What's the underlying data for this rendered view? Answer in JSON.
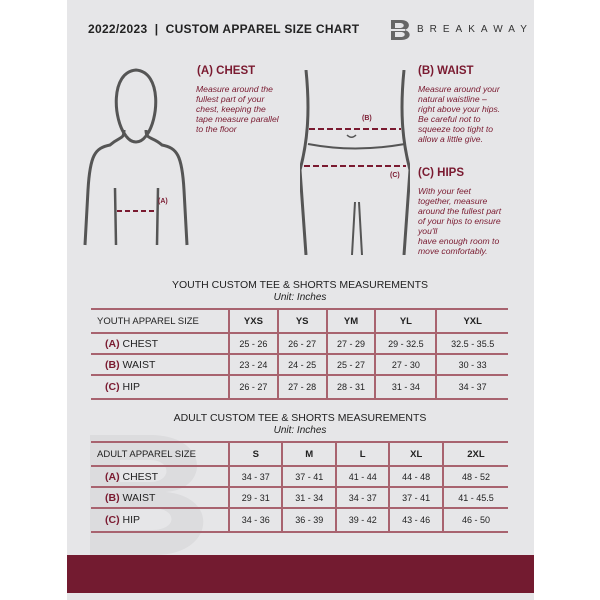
{
  "header": {
    "title": "2022/2023  |  CUSTOM APPAREL SIZE CHART",
    "brand": "BREAKAWAY"
  },
  "guides": {
    "chest": {
      "heading": "(A) CHEST",
      "text": "Measure around the\nfullest part of your\nchest, keeping the\ntape measure parallel\nto the floor",
      "marker": "(A)"
    },
    "waist": {
      "heading": "(B) WAIST",
      "text": "Measure around your\nnatural waistline –\nright above your hips.\nBe careful not to\nsqueeze too tight to\nallow a little give.",
      "marker": "(B)"
    },
    "hips": {
      "heading": "(C) HIPS",
      "text": "With your feet\ntogether, measure\naround the fullest part\nof your hips to ensure\nyou'll\nhave enough room to\nmove comfortably.",
      "marker": "(C)"
    }
  },
  "youth": {
    "title": "YOUTH CUSTOM TEE & SHORTS MEASUREMENTS",
    "unit": "Unit: Inches",
    "header": "YOUTH APPAREL SIZE",
    "sizes": [
      "YXS",
      "YS",
      "YM",
      "YL",
      "YXL"
    ],
    "rows": [
      {
        "letter": "(A)",
        "label": "CHEST",
        "values": [
          "25 - 26",
          "26 - 27",
          "27 - 29",
          "29 - 32.5",
          "32.5 - 35.5"
        ]
      },
      {
        "letter": "(B)",
        "label": "WAIST",
        "values": [
          "23 - 24",
          "24 - 25",
          "25 - 27",
          "27 - 30",
          "30 - 33"
        ]
      },
      {
        "letter": "(C)",
        "label": "HIP",
        "values": [
          "26 - 27",
          "27 - 28",
          "28 - 31",
          "31 - 34",
          "34 - 37"
        ]
      }
    ]
  },
  "adult": {
    "title": "ADULT CUSTOM TEE & SHORTS MEASUREMENTS",
    "unit": "Unit: Inches",
    "header": "ADULT APPAREL SIZE",
    "sizes": [
      "S",
      "M",
      "L",
      "XL",
      "2XL"
    ],
    "rows": [
      {
        "letter": "(A)",
        "label": "CHEST",
        "values": [
          "34 - 37",
          "37 - 41",
          "41 - 44",
          "44 - 48",
          "48 - 52"
        ]
      },
      {
        "letter": "(B)",
        "label": "WAIST",
        "values": [
          "29 - 31",
          "31 - 34",
          "34 - 37",
          "37 - 41",
          "41 - 45.5"
        ]
      },
      {
        "letter": "(C)",
        "label": "HIP",
        "values": [
          "34 - 36",
          "36 - 39",
          "39 - 42",
          "43 - 46",
          "46 - 50"
        ]
      }
    ]
  },
  "colors": {
    "accent": "#731b30",
    "panel": "#e6e6e8"
  }
}
